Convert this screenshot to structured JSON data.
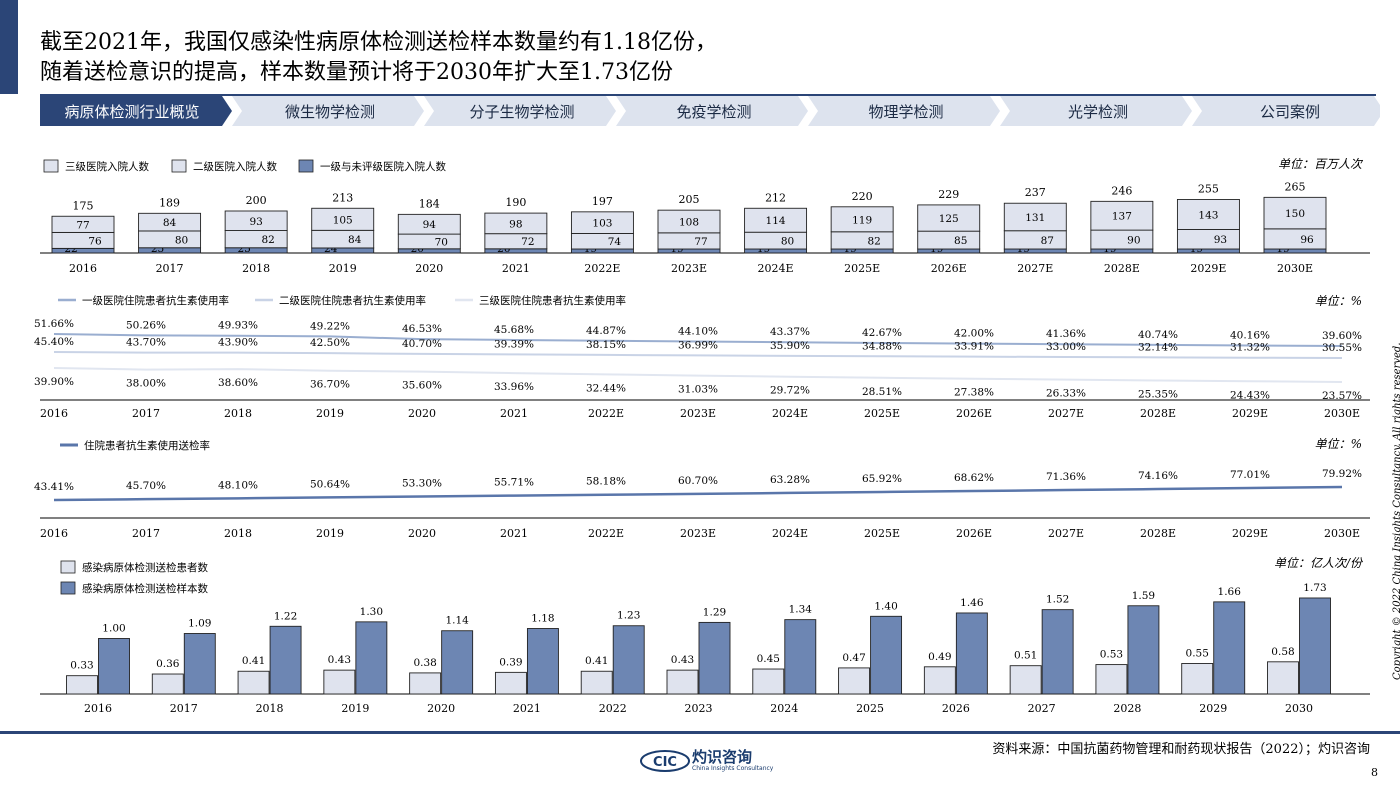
{
  "page": {
    "title": "截至2021年，我国仅感染性病原体检测送检样本数量约有1.18亿份，\n随着送检意识的提高，样本数量预计将于2030年扩大至1.73亿份",
    "page_number": "8",
    "source": "资料来源：中国抗菌药物管理和耐药现状报告（2022）；灼识咨询",
    "copyright": "Copyright © 2022 China Insights Consultancy. All rights reserved.",
    "logo_text": "CIC",
    "logo_cn": "灼识咨询",
    "logo_en": "China Insights Consultancy",
    "accent_color": "#2b4577"
  },
  "nav": {
    "tabs": [
      {
        "label": "病原体检测行业概览",
        "active": true
      },
      {
        "label": "微生物学检测",
        "active": false
      },
      {
        "label": "分子生物学检测",
        "active": false
      },
      {
        "label": "免疫学检测",
        "active": false
      },
      {
        "label": "物理学检测",
        "active": false
      },
      {
        "label": "光学检测",
        "active": false
      },
      {
        "label": "公司案例",
        "active": false
      }
    ]
  },
  "chart_data": [
    {
      "type": "bar",
      "stacked": true,
      "unit": "单位：百万人次",
      "categories": [
        "2016",
        "2017",
        "2018",
        "2019",
        "2020",
        "2021",
        "2022E",
        "2023E",
        "2024E",
        "2025E",
        "2026E",
        "2027E",
        "2028E",
        "2029E",
        "2030E"
      ],
      "totals": [
        175,
        189,
        200,
        213,
        184,
        190,
        197,
        205,
        212,
        220,
        229,
        237,
        246,
        255,
        265
      ],
      "series": [
        {
          "name": "一级与未评级医院入院人数",
          "color": "#6d86b3",
          "values": [
            22,
            25,
            25,
            24,
            20,
            20,
            19,
            19,
            19,
            19,
            19,
            19,
            19,
            19,
            19
          ]
        },
        {
          "name": "二级医院入院人数",
          "color": "#dfe3ee",
          "values": [
            76,
            80,
            82,
            84,
            70,
            72,
            74,
            77,
            80,
            82,
            85,
            87,
            90,
            93,
            96
          ]
        },
        {
          "name": "三级医院入院人数",
          "color": "#dfe3ee",
          "values": [
            77,
            84,
            93,
            105,
            94,
            98,
            103,
            108,
            114,
            119,
            125,
            131,
            137,
            143,
            150
          ]
        }
      ],
      "legend": [
        "三级医院入院人数",
        "二级医院入院人数",
        "一级与未评级医院入院人数"
      ]
    },
    {
      "type": "line",
      "unit": "单位：%",
      "categories": [
        "2016",
        "2017",
        "2018",
        "2019",
        "2020",
        "2021",
        "2022E",
        "2023E",
        "2024E",
        "2025E",
        "2026E",
        "2027E",
        "2028E",
        "2029E",
        "2030E"
      ],
      "series": [
        {
          "name": "一级医院住院患者抗生素使用率",
          "color": "#9aaed0",
          "values": [
            51.66,
            50.26,
            49.93,
            49.22,
            46.53,
            45.68,
            44.87,
            44.1,
            43.37,
            42.67,
            42.0,
            41.36,
            40.74,
            40.16,
            39.6
          ],
          "labels": [
            "51.66%",
            "50.26%",
            "49.93%",
            "49.22%",
            "46.53%",
            "45.68%",
            "44.87%",
            "44.10%",
            "43.37%",
            "42.67%",
            "42.00%",
            "41.36%",
            "40.74%",
            "40.16%",
            "39.60%"
          ]
        },
        {
          "name": "二级医院住院患者抗生素使用率",
          "color": "#c9d3e6",
          "values": [
            45.4,
            43.7,
            43.9,
            42.5,
            40.7,
            39.39,
            38.15,
            36.99,
            35.9,
            34.88,
            33.91,
            33.0,
            32.14,
            31.32,
            30.55
          ],
          "labels": [
            "45.40%",
            "43.70%",
            "43.90%",
            "42.50%",
            "40.70%",
            "39.39%",
            "38.15%",
            "36.99%",
            "35.90%",
            "34.88%",
            "33.91%",
            "33.00%",
            "32.14%",
            "31.32%",
            "30.55%"
          ]
        },
        {
          "name": "三级医院住院患者抗生素使用率",
          "color": "#e1e6f0",
          "values": [
            39.9,
            38.0,
            38.6,
            36.7,
            35.6,
            33.96,
            32.44,
            31.03,
            29.72,
            28.51,
            27.38,
            26.33,
            25.35,
            24.43,
            23.57
          ],
          "labels": [
            "39.90%",
            "38.00%",
            "38.60%",
            "36.70%",
            "35.60%",
            "33.96%",
            "32.44%",
            "31.03%",
            "29.72%",
            "28.51%",
            "27.38%",
            "26.33%",
            "25.35%",
            "24.43%",
            "23.57%"
          ]
        }
      ]
    },
    {
      "type": "line",
      "unit": "单位：%",
      "categories": [
        "2016",
        "2017",
        "2018",
        "2019",
        "2020",
        "2021",
        "2022E",
        "2023E",
        "2024E",
        "2025E",
        "2026E",
        "2027E",
        "2028E",
        "2029E",
        "2030E"
      ],
      "series": [
        {
          "name": "住院患者抗生素使用送检率",
          "color": "#5a76aa",
          "values": [
            43.41,
            45.7,
            48.1,
            50.64,
            53.3,
            55.71,
            58.18,
            60.7,
            63.28,
            65.92,
            68.62,
            71.36,
            74.16,
            77.01,
            79.92
          ],
          "labels": [
            "43.41%",
            "45.70%",
            "48.10%",
            "50.64%",
            "53.30%",
            "55.71%",
            "58.18%",
            "60.70%",
            "63.28%",
            "65.92%",
            "68.62%",
            "71.36%",
            "74.16%",
            "77.01%",
            "79.92%"
          ]
        }
      ]
    },
    {
      "type": "bar",
      "unit": "单位：亿人次/份",
      "categories": [
        "2016",
        "2017",
        "2018",
        "2019",
        "2020",
        "2021",
        "2022",
        "2023",
        "2024",
        "2025",
        "2026",
        "2027",
        "2028",
        "2029",
        "2030"
      ],
      "series": [
        {
          "name": "感染病原体检测送检患者数",
          "color": "#dfe3ee",
          "values": [
            0.33,
            0.36,
            0.41,
            0.43,
            0.38,
            0.39,
            0.41,
            0.43,
            0.45,
            0.47,
            0.49,
            0.51,
            0.53,
            0.55,
            0.58
          ],
          "labels": [
            "0.33",
            "0.36",
            "0.41",
            "0.43",
            "0.38",
            "0.39",
            "0.41",
            "0.43",
            "0.45",
            "0.47",
            "0.49",
            "0.51",
            "0.53",
            "0.55",
            "0.58"
          ]
        },
        {
          "name": "感染病原体检测送检样本数",
          "color": "#6d86b3",
          "values": [
            1.0,
            1.09,
            1.22,
            1.3,
            1.14,
            1.18,
            1.23,
            1.29,
            1.34,
            1.4,
            1.46,
            1.52,
            1.59,
            1.66,
            1.73
          ],
          "labels": [
            "1.00",
            "1.09",
            "1.22",
            "1.30",
            "1.14",
            "1.18",
            "1.23",
            "1.29",
            "1.34",
            "1.40",
            "1.46",
            "1.52",
            "1.59",
            "1.66",
            "1.73"
          ]
        }
      ]
    }
  ]
}
